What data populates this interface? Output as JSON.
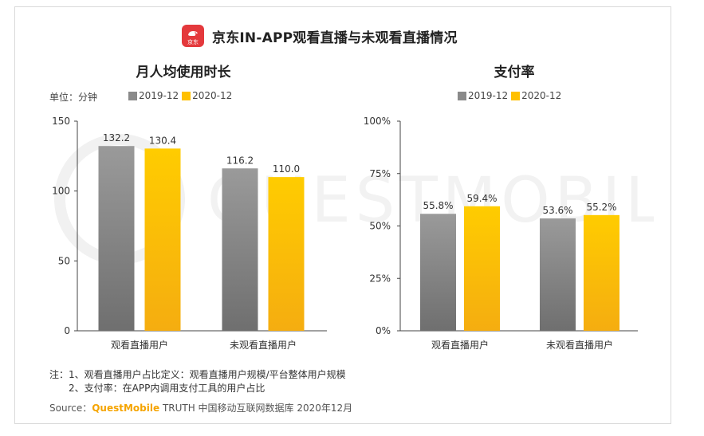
{
  "title": "京东IN-APP观看直播与未观看直播情况",
  "logo_text": "京东",
  "unit": "单位：分钟",
  "colors": {
    "2019-12": "#8a8a8a",
    "2020-12": "#ffc000",
    "axis": "#444444"
  },
  "watermark": "QUESTMOBILE",
  "chart_data": [
    {
      "type": "bar",
      "title": "月人均使用时长",
      "categories": [
        "观看直播用户",
        "未观看直播用户"
      ],
      "series": [
        {
          "name": "2019-12",
          "values": [
            132.2,
            116.2
          ],
          "labels": [
            "132.2",
            "116.2"
          ]
        },
        {
          "name": "2020-12",
          "values": [
            130.4,
            110.0
          ],
          "labels": [
            "130.4",
            "110.0"
          ]
        }
      ],
      "ylim": [
        0,
        150
      ],
      "yticks": [
        0,
        50,
        100,
        150
      ],
      "ytick_labels": [
        "0",
        "50",
        "100",
        "150"
      ],
      "legend": "top"
    },
    {
      "type": "bar",
      "title": "支付率",
      "categories": [
        "观看直播用户",
        "未观看直播用户"
      ],
      "series": [
        {
          "name": "2019-12",
          "values": [
            55.8,
            53.6
          ],
          "labels": [
            "55.8%",
            "53.6%"
          ]
        },
        {
          "name": "2020-12",
          "values": [
            59.4,
            55.2
          ],
          "labels": [
            "59.4%",
            "55.2%"
          ]
        }
      ],
      "ylim": [
        0,
        100
      ],
      "yticks": [
        0,
        25,
        50,
        75,
        100
      ],
      "ytick_labels": [
        "0%",
        "25%",
        "50%",
        "75%",
        "100%"
      ],
      "legend": "top"
    }
  ],
  "notes": {
    "line1": "注：1、观看直播用户占比定义：观看直播用户规模/平台整体用户规模",
    "line2": "2、支付率：在APP内调用支付工具的用户占比"
  },
  "source": {
    "prefix": "Source：",
    "brand": "QuestMobile",
    "suffix": " TRUTH 中国移动互联网数据库 2020年12月"
  }
}
